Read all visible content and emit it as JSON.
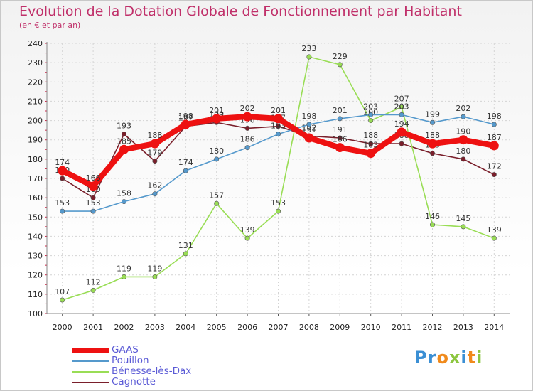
{
  "header": {
    "title": "Evolution de la Dotation Globale de Fonctionnement par Habitant",
    "subtitle": "(en € et par an)"
  },
  "logo": {
    "text": "Proxiti",
    "letters": [
      {
        "ch": "P",
        "color": "#3b8fd4"
      },
      {
        "ch": "r",
        "color": "#3b8fd4"
      },
      {
        "ch": "o",
        "color": "#f08a1c"
      },
      {
        "ch": "x",
        "color": "#8cc63f"
      },
      {
        "ch": "i",
        "color": "#3b8fd4"
      },
      {
        "ch": "t",
        "color": "#f08a1c"
      },
      {
        "ch": "i",
        "color": "#8cc63f"
      }
    ]
  },
  "chart_data": {
    "type": "line",
    "x": [
      2000,
      2001,
      2002,
      2003,
      2004,
      2005,
      2006,
      2007,
      2008,
      2009,
      2010,
      2011,
      2012,
      2013,
      2014
    ],
    "ylim": [
      100,
      240
    ],
    "yticks": [
      100,
      110,
      120,
      130,
      140,
      150,
      160,
      170,
      180,
      190,
      200,
      210,
      220,
      230,
      240
    ],
    "grid": true,
    "legend_position": "bottom-left",
    "series": [
      {
        "name": "Cagnotte",
        "color": "#7a1f2b",
        "values": [
          170,
          160,
          193,
          179,
          197,
          199,
          196,
          197,
          192,
          191,
          188,
          188,
          183,
          180,
          172
        ]
      },
      {
        "name": "Bénesse-lès-Dax",
        "color": "#99dd55",
        "values": [
          107,
          112,
          119,
          119,
          131,
          157,
          139,
          153,
          233,
          229,
          200,
          207,
          146,
          145,
          139
        ]
      },
      {
        "name": "Pouillon",
        "color": "#5599cc",
        "values": [
          153,
          153,
          158,
          162,
          174,
          180,
          186,
          193,
          198,
          201,
          203,
          203,
          199,
          202,
          198
        ]
      },
      {
        "name": "GAAS",
        "color": "#ee1111",
        "values": [
          174,
          166,
          185,
          188,
          198,
          201,
          202,
          201,
          191,
          186,
          183,
          194,
          188,
          190,
          187
        ]
      }
    ]
  }
}
